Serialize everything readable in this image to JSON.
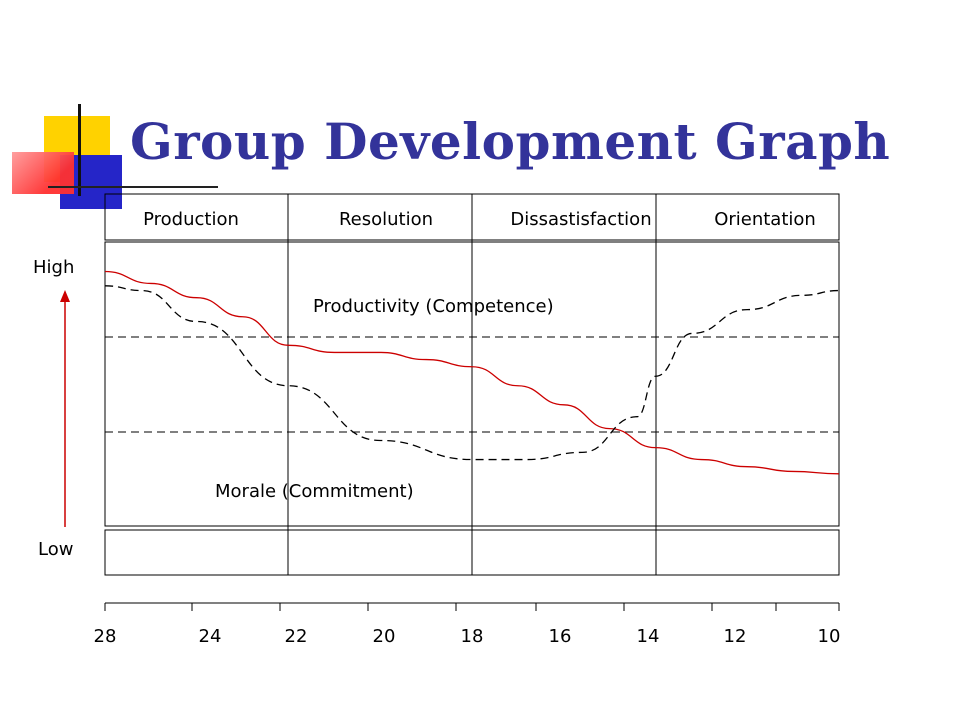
{
  "title": "Group Development Graph",
  "colors": {
    "title": "#33339a",
    "productivity_line": "#cc0000",
    "morale_line": "#000000",
    "arrow": "#cc0000",
    "deco_yellow": "#ffd200",
    "deco_blue": "#2222cc",
    "deco_red": "#ff3b3b"
  },
  "chart_data": {
    "type": "line",
    "title": "Group Development Graph",
    "stages": [
      "Production",
      "Resolution",
      "Dissastisfaction",
      "Orientation"
    ],
    "y_axis": {
      "high_label": "High",
      "low_label": "Low",
      "arrow": "up"
    },
    "x_ticks": [
      "28",
      "24",
      "22",
      "20",
      "18",
      "16",
      "14",
      "12",
      "10"
    ],
    "x_reversed": true,
    "reference_lines": [
      "dashed-upper",
      "dashed-lower"
    ],
    "series": [
      {
        "name": "Productivity (Competence)",
        "style": "solid",
        "color": "#cc0000",
        "y_scale": "0 = Low, 1 = High",
        "stage_x": [
          0,
          0.25,
          0.5,
          0.75,
          1.0,
          1.25,
          1.5,
          1.75,
          2.0,
          2.25,
          2.5,
          2.75,
          3.0,
          3.25,
          3.5,
          3.75,
          4.0
        ],
        "values": [
          0.96,
          0.91,
          0.85,
          0.77,
          0.65,
          0.62,
          0.62,
          0.59,
          0.56,
          0.48,
          0.4,
          0.3,
          0.22,
          0.17,
          0.14,
          0.12,
          0.11
        ]
      },
      {
        "name": "Morale (Commitment)",
        "style": "dashed",
        "color": "#000000",
        "y_scale": "0 = Low, 1 = High",
        "stage_x": [
          0,
          0.2,
          0.5,
          1.0,
          1.5,
          2.0,
          2.3,
          2.6,
          2.9,
          3.0,
          3.2,
          3.5,
          3.8,
          4.0
        ],
        "values": [
          0.9,
          0.88,
          0.75,
          0.48,
          0.25,
          0.17,
          0.17,
          0.2,
          0.35,
          0.52,
          0.7,
          0.8,
          0.86,
          0.88
        ]
      }
    ]
  }
}
